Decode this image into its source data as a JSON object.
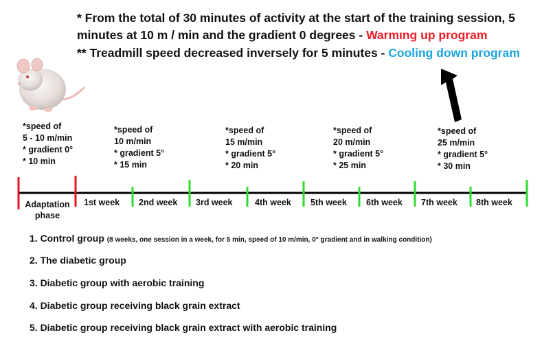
{
  "notes": {
    "line1": "* From the total of 30 minutes of activity at the start of the training session, 5",
    "line2_text": "minutes at 10 m / min and the gradient 0 degrees - ",
    "line2_highlight": "Warmıng up program",
    "line3_text": "** Treadmill speed decreased inversely for 5 minutes - ",
    "line3_highlight": "Cooling down program"
  },
  "phases": [
    {
      "lines": [
        "*speed of",
        "5 - 10 m/min",
        "* gradient 0°",
        "* 10 min"
      ]
    },
    {
      "lines": [
        "*speed of",
        "10 m/min",
        "* gradient 5°",
        "* 15 min"
      ]
    },
    {
      "lines": [
        "*speed of",
        "15 m/min",
        "* gradient 5°",
        "* 20 min"
      ]
    },
    {
      "lines": [
        "*speed of",
        "20 m/min",
        "* gradient 5°",
        "* 25 min"
      ]
    },
    {
      "lines": [
        "*speed of",
        "25 m/min",
        "* gradient 5°",
        "* 30 min"
      ]
    }
  ],
  "timeline": {
    "adaptation_line1": "Adaptation",
    "adaptation_line2": "phase",
    "weeks": [
      "1st week",
      "2nd week",
      "3rd week",
      "4th week",
      "5th week",
      "6th week",
      "7th week",
      "8th week"
    ]
  },
  "groups": [
    {
      "label": "1. Control group",
      "detail": "(8 weeks, one session in a week, for 5 min, speed of 10 m/min, 0° gradient and in walking condition)"
    },
    {
      "label": "2. The diabetic group",
      "detail": ""
    },
    {
      "label": "3. Diabetic group with aerobic training",
      "detail": ""
    },
    {
      "label": "4. Diabetic group receiving black grain extract",
      "detail": ""
    },
    {
      "label": "5. Diabetic group receiving black grain extract with aerobic training",
      "detail": ""
    }
  ],
  "colors": {
    "warming": "#ee1c24",
    "cooling": "#1aa3e0",
    "tick_red": "#e8141c",
    "tick_green": "#2ddc2d",
    "axis": "#000000"
  },
  "icons": {
    "rat": "rat-illustration",
    "arrow": "up-arrow-icon"
  }
}
